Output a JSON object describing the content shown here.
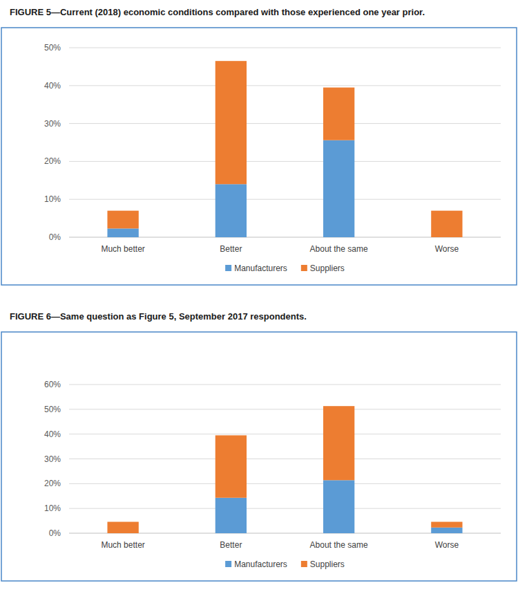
{
  "chart_data": [
    {
      "type": "bar",
      "title": "FIGURE 5—Current (2018) economic conditions compared with those experienced one year prior.",
      "categories": [
        "Much better",
        "Better",
        "About the same",
        "Worse"
      ],
      "series": [
        {
          "name": "Manufacturers",
          "color": "#5b9bd5",
          "values": [
            2.3,
            14.0,
            25.6,
            0
          ]
        },
        {
          "name": "Suppliers",
          "color": "#ed7d31",
          "values": [
            4.7,
            32.5,
            13.9,
            7.0
          ]
        }
      ],
      "ylim": [
        0,
        50
      ],
      "yticks": [
        {
          "value": 0,
          "label": "0%"
        },
        {
          "value": 10,
          "label": "10%"
        },
        {
          "value": 20,
          "label": "20%"
        },
        {
          "value": 30,
          "label": "30%"
        },
        {
          "value": 40,
          "label": "40%"
        },
        {
          "value": 50,
          "label": "50%"
        }
      ],
      "stacked": true,
      "grid": true,
      "legend": "bottom"
    },
    {
      "type": "bar",
      "title": "FIGURE 6—Same question as Figure 5, September 2017 respondents.",
      "categories": [
        "Much better",
        "Better",
        "About the same",
        "Worse"
      ],
      "series": [
        {
          "name": "Manufacturers",
          "color": "#5b9bd5",
          "values": [
            0,
            14.3,
            21.4,
            2.3
          ]
        },
        {
          "name": "Suppliers",
          "color": "#ed7d31",
          "values": [
            4.6,
            25.2,
            29.9,
            2.3
          ]
        }
      ],
      "ylim": [
        0,
        60
      ],
      "yticks": [
        {
          "value": 0,
          "label": "0%"
        },
        {
          "value": 10,
          "label": "10%"
        },
        {
          "value": 20,
          "label": "20%"
        },
        {
          "value": 30,
          "label": "30%"
        },
        {
          "value": 40,
          "label": "40%"
        },
        {
          "value": 50,
          "label": "50%"
        },
        {
          "value": 60,
          "label": "60%"
        }
      ],
      "stacked": true,
      "grid": true,
      "legend": "bottom"
    }
  ]
}
